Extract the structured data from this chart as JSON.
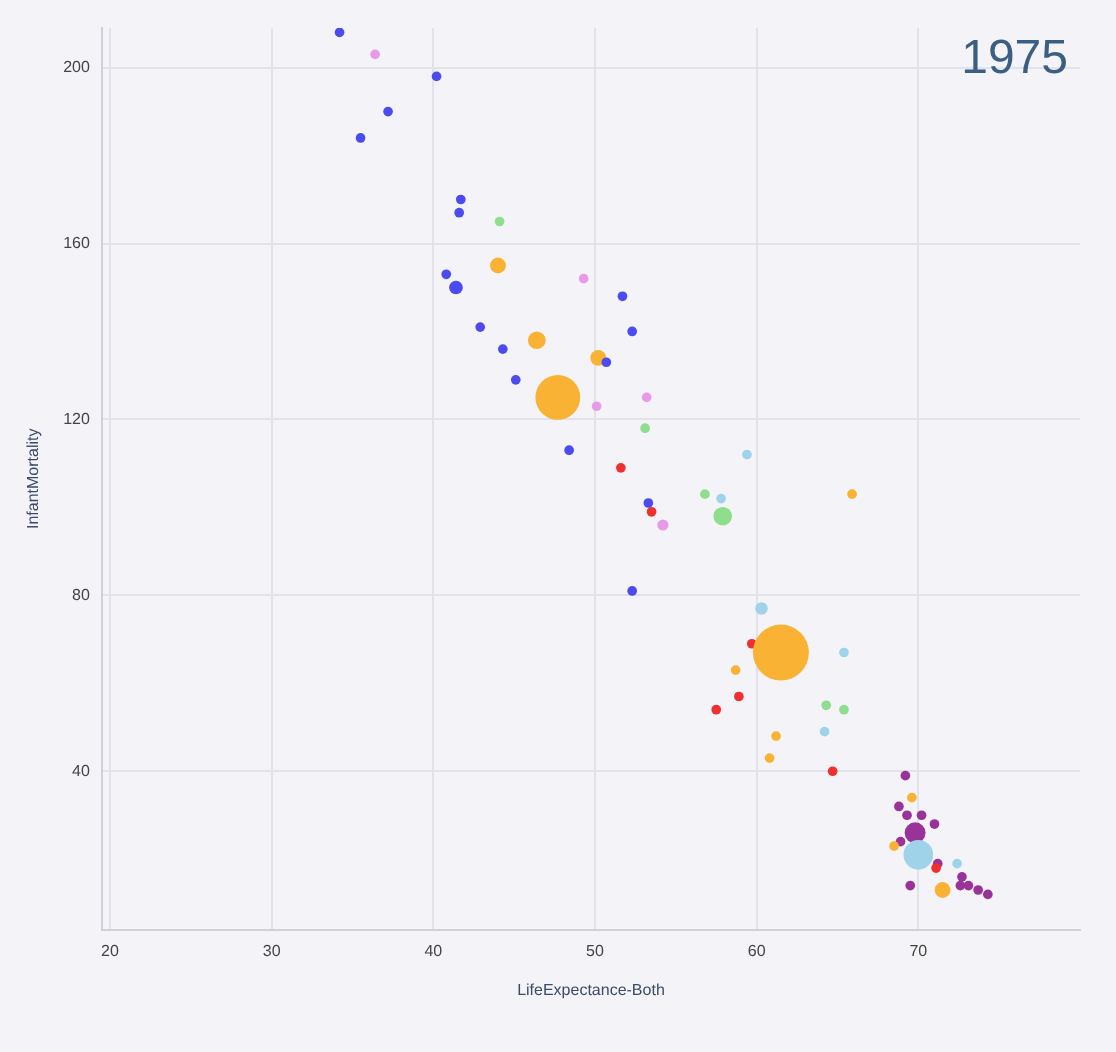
{
  "chart_data": {
    "type": "bubble",
    "title": "1975",
    "xlabel": "LifeExpectance-Both",
    "ylabel": "InfantMortality",
    "xlim": [
      19.5,
      80
    ],
    "xticks": [
      20,
      30,
      40,
      50,
      60,
      70
    ],
    "ylim": [
      4,
      209
    ],
    "yticks": [
      40,
      80,
      120,
      160,
      200
    ],
    "grid": true,
    "legend": false,
    "marker": "circle",
    "series": [
      {
        "color": "#4b4bf0",
        "x": [
          34.2,
          40.2,
          37.2,
          35.5,
          41.7,
          41.6,
          40.8,
          41.4,
          42.9,
          44.3,
          45.1,
          51.7,
          52.3,
          50.7,
          48.4,
          53.3,
          52.3
        ],
        "values": [
          208,
          198,
          190,
          184,
          170,
          167,
          153,
          150,
          141,
          136,
          129,
          148,
          140,
          133,
          113,
          101,
          81
        ],
        "sizes": [
          0.03,
          0.03,
          0.03,
          0.03,
          0.03,
          0.03,
          0.03,
          0.06,
          0.03,
          0.03,
          0.03,
          0.03,
          0.03,
          0.03,
          0.03,
          0.03,
          0.03
        ]
      },
      {
        "color": "#e89ae8",
        "x": [
          36.4,
          49.3,
          53.2,
          50.1,
          54.2
        ],
        "values": [
          203,
          152,
          125,
          123,
          96
        ],
        "sizes": [
          0.03,
          0.03,
          0.03,
          0.03,
          0.04
        ]
      },
      {
        "color": "#8ede8e",
        "x": [
          44.1,
          53.1,
          56.8,
          57.9,
          64.3,
          65.4
        ],
        "values": [
          165,
          118,
          103,
          98,
          55,
          54
        ],
        "sizes": [
          0.03,
          0.03,
          0.03,
          0.11,
          0.03,
          0.03
        ]
      },
      {
        "color": "#f9b233",
        "x": [
          44.0,
          46.4,
          50.2,
          47.7,
          65.9,
          61.5,
          58.7,
          61.2,
          60.8,
          69.6,
          68.5,
          71.5
        ],
        "values": [
          155,
          138,
          134,
          125,
          103,
          67,
          63,
          48,
          43,
          34,
          23,
          13
        ],
        "sizes": [
          0.08,
          0.1,
          0.08,
          0.64,
          0.03,
          1,
          0.03,
          0.03,
          0.03,
          0.03,
          0.03,
          0.08
        ]
      },
      {
        "color": "#9fd3ea",
        "x": [
          59.4,
          57.8,
          60.3,
          65.4,
          64.2,
          70.0,
          72.4
        ],
        "values": [
          112,
          102,
          77,
          67,
          49,
          21,
          19
        ],
        "sizes": [
          0.03,
          0.03,
          0.05,
          0.03,
          0.03,
          0.28,
          0.03
        ]
      },
      {
        "color": "#f03030",
        "x": [
          51.6,
          53.5,
          59.7,
          58.9,
          57.5,
          64.7,
          71.1
        ],
        "values": [
          109,
          99,
          69,
          57,
          54,
          40,
          18
        ],
        "sizes": [
          0.03,
          0.03,
          0.03,
          0.03,
          0.03,
          0.03,
          0.03
        ]
      },
      {
        "color": "#993399",
        "x": [
          69.2,
          68.8,
          69.3,
          70.2,
          71.0,
          69.8,
          68.9,
          71.2,
          72.7,
          69.5,
          72.6,
          73.1,
          73.7,
          74.3
        ],
        "values": [
          39,
          32,
          30,
          30,
          28,
          26,
          24,
          19,
          16,
          14,
          14,
          14,
          13,
          12
        ],
        "sizes": [
          0.03,
          0.03,
          0.03,
          0.03,
          0.03,
          0.14,
          0.03,
          0.03,
          0.03,
          0.03,
          0.03,
          0.03,
          0.03,
          0.03
        ]
      }
    ]
  }
}
